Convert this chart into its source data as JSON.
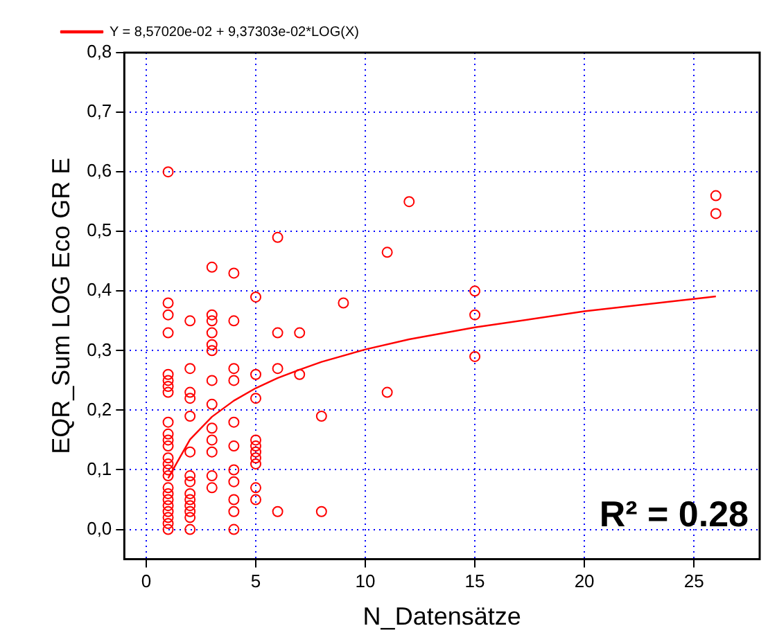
{
  "chart_data": {
    "type": "scatter",
    "xlabel": "N_Datensätze",
    "ylabel": "EQR_Sum LOG Eco GR E",
    "annotations": [
      "R² = 0.28"
    ],
    "xlim": [
      -1,
      28
    ],
    "xticks": [
      0,
      5,
      10,
      15,
      20,
      25
    ],
    "ylim": [
      -0.05,
      0.8
    ],
    "yticks": [
      {
        "value": 0,
        "label": "0,0"
      },
      {
        "value": 0.1,
        "label": "0,1"
      },
      {
        "value": 0.2,
        "label": "0,2"
      },
      {
        "value": 0.3,
        "label": "0,3"
      },
      {
        "value": 0.4,
        "label": "0,4"
      },
      {
        "value": 0.5,
        "label": "0,5"
      },
      {
        "value": 0.6,
        "label": "0,6"
      },
      {
        "value": 0.7,
        "label": "0,7"
      },
      {
        "value": 0.8,
        "label": "0,8"
      }
    ],
    "grid": true,
    "legend": "top left",
    "marker": "circle",
    "series": [
      {
        "type": "scatter",
        "color": "#ff0000",
        "x": [
          1,
          1,
          1,
          1,
          1,
          1,
          1,
          1,
          1,
          1,
          1,
          1,
          1,
          1,
          1,
          1,
          1,
          1,
          1,
          1,
          1,
          1,
          1,
          1,
          2,
          2,
          2,
          2,
          2,
          2,
          2,
          2,
          2,
          2,
          2,
          2,
          2,
          2,
          3,
          3,
          3,
          3,
          3,
          3,
          3,
          3,
          3,
          3,
          3,
          3,
          3,
          4,
          4,
          4,
          4,
          4,
          4,
          4,
          4,
          4,
          4,
          4,
          5,
          5,
          5,
          5,
          5,
          5,
          5,
          5,
          5,
          5,
          6,
          6,
          6,
          6,
          7,
          7,
          8,
          8,
          9,
          11,
          11,
          12,
          15,
          15,
          15,
          26,
          26
        ],
        "values": [
          0.6,
          0.38,
          0.36,
          0.33,
          0.26,
          0.25,
          0.24,
          0.23,
          0.18,
          0.16,
          0.15,
          0.14,
          0.12,
          0.11,
          0.1,
          0.09,
          0.07,
          0.06,
          0.05,
          0.04,
          0.03,
          0.02,
          0.01,
          0.0,
          0.35,
          0.27,
          0.23,
          0.22,
          0.19,
          0.13,
          0.09,
          0.08,
          0.06,
          0.05,
          0.04,
          0.03,
          0.02,
          0.0,
          0.44,
          0.36,
          0.35,
          0.33,
          0.31,
          0.3,
          0.25,
          0.21,
          0.17,
          0.15,
          0.13,
          0.09,
          0.07,
          0.43,
          0.35,
          0.27,
          0.25,
          0.18,
          0.14,
          0.1,
          0.08,
          0.05,
          0.03,
          0.0,
          0.39,
          0.26,
          0.22,
          0.15,
          0.14,
          0.13,
          0.12,
          0.11,
          0.07,
          0.05,
          0.49,
          0.33,
          0.27,
          0.03,
          0.33,
          0.26,
          0.19,
          0.03,
          0.38,
          0.465,
          0.23,
          0.55,
          0.4,
          0.36,
          0.29,
          0.56,
          0.53
        ]
      },
      {
        "type": "line",
        "name": "Y = 8,57020e-02 + 9,37303e-02*LOG(X)",
        "color": "#ff0000",
        "marker": "none",
        "line_style": "solid",
        "x": [
          1,
          2,
          3,
          4,
          5,
          6,
          7,
          8,
          10,
          12,
          15,
          20,
          26
        ],
        "values": [
          0.086,
          0.151,
          0.189,
          0.216,
          0.237,
          0.254,
          0.268,
          0.281,
          0.302,
          0.319,
          0.339,
          0.366,
          0.391
        ]
      }
    ]
  }
}
